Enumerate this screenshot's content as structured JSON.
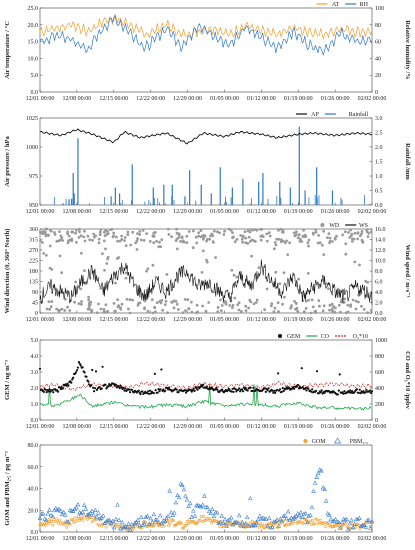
{
  "figure": {
    "x_ticks": [
      "12/01 00:00",
      "12/08 00:00",
      "12/15 00:00",
      "12/22 00:00",
      "12/29 00:00",
      "01/05 00:00",
      "01/12 00:00",
      "01/19 00:00",
      "01/26 00:00",
      "02/02 00:00"
    ],
    "x_tick_days": [
      0,
      7,
      14,
      21,
      28,
      35,
      42,
      49,
      56,
      63
    ]
  },
  "chart_data": [
    {
      "type": "line",
      "panel": "a",
      "ylabel_left": "Air temperature / °C",
      "ylabel_right": "Relative humidity /%",
      "ylim_left": [
        0,
        25
      ],
      "yticks_left": [
        "0.0",
        "5.0",
        "10.0",
        "15.0",
        "20.0",
        "25.0"
      ],
      "ylim_right": [
        0,
        100
      ],
      "yticks_right": [
        "0",
        "20",
        "40",
        "60",
        "80",
        "100"
      ],
      "legend": "top-right",
      "series": [
        {
          "name": "AT",
          "axis": "left",
          "color": "#f0a030",
          "x_days": [
            0,
            3,
            6,
            9,
            12,
            14,
            17,
            20,
            24,
            27,
            30,
            33,
            36,
            39,
            42,
            45,
            48,
            51,
            54,
            57,
            60,
            63
          ],
          "values": [
            18,
            19,
            20,
            18,
            21,
            22,
            20,
            17,
            20,
            17,
            18,
            19,
            17,
            20,
            18,
            17,
            19,
            18,
            17,
            19,
            18,
            18
          ]
        },
        {
          "name": "RH",
          "axis": "right",
          "color": "#2e78c8",
          "x_days": [
            0,
            3,
            6,
            9,
            12,
            14,
            17,
            20,
            24,
            27,
            30,
            33,
            36,
            39,
            42,
            45,
            48,
            51,
            54,
            57,
            60,
            63
          ],
          "values": [
            58,
            68,
            62,
            50,
            76,
            88,
            72,
            52,
            76,
            54,
            80,
            66,
            56,
            78,
            64,
            52,
            72,
            56,
            50,
            70,
            60,
            62
          ]
        }
      ]
    },
    {
      "type": "line",
      "panel": "b",
      "ylabel_left": "Air pressure / hPa",
      "ylabel_right": "Rainfall /mm",
      "ylim_left": [
        950,
        1025
      ],
      "yticks_left": [
        "950",
        "975",
        "1000",
        "1025"
      ],
      "ylim_right": [
        0,
        3
      ],
      "yticks_right": [
        "0.0",
        "0.5",
        "1.0",
        "1.5",
        "2.0",
        "2.5",
        "3.0"
      ],
      "legend": "top-right",
      "series": [
        {
          "name": "AP",
          "axis": "left",
          "color": "#111111",
          "x_days": [
            0,
            4,
            7,
            10,
            14,
            16,
            19,
            24,
            28,
            31,
            35,
            38,
            42,
            45,
            49,
            52,
            56,
            60,
            63
          ],
          "values": [
            1013,
            1010,
            1015,
            1011,
            1004,
            1013,
            1008,
            1012,
            1003,
            1012,
            1009,
            1013,
            1011,
            1008,
            1011,
            1012,
            1010,
            1012,
            1011
          ]
        },
        {
          "name": "Rainfall",
          "axis": "right",
          "color": "#2e78c8",
          "bar_days": [
            5.5,
            6.3,
            6.5,
            7.2,
            13.5,
            14.3,
            15.1,
            17.5,
            21.5,
            23.5,
            25.1,
            27.5,
            28.4,
            30.6,
            32.5,
            34.2,
            36.5,
            38.5,
            41.5,
            42.3,
            45.5,
            47.5,
            49.2,
            50.3,
            52.5,
            55.5
          ],
          "values": [
            0.2,
            1.1,
            0.4,
            2.3,
            0.3,
            0.6,
            0.4,
            1.4,
            0.6,
            0.7,
            0.7,
            0.3,
            1.2,
            0.7,
            0.4,
            1.3,
            0.6,
            0.9,
            0.8,
            1.1,
            0.8,
            0.6,
            2.7,
            0.5,
            1.3,
            0.5
          ]
        }
      ]
    },
    {
      "type": "scatter",
      "panel": "c",
      "ylabel_left": "Wind direction (0, 360° North)",
      "ylabel_right": "Wind speed / m·s⁻¹",
      "ylim_left": [
        0,
        360
      ],
      "yticks_left": [
        "0",
        "45",
        "90",
        "135",
        "180",
        "225",
        "270",
        "315",
        "360"
      ],
      "ylim_right": [
        0,
        16
      ],
      "yticks_right": [
        "0.0",
        "2.0",
        "4.0",
        "6.0",
        "8.0",
        "10.0",
        "12.0",
        "14.0",
        "16.0"
      ],
      "legend": "top-right",
      "series": [
        {
          "name": "WD",
          "axis": "left",
          "color": "#9a9a9a",
          "marker": "circle"
        },
        {
          "name": "WS",
          "axis": "right",
          "color": "#111111",
          "x_days": [
            0,
            2,
            4,
            6,
            8,
            10,
            12,
            14,
            16,
            18,
            20,
            22,
            24,
            26,
            28,
            30,
            32,
            34,
            36,
            38,
            40,
            42,
            44,
            46,
            48,
            50,
            52,
            54,
            56,
            58,
            60,
            62,
            63
          ],
          "values": [
            3,
            5,
            4,
            3,
            6,
            8,
            4,
            7,
            9,
            5,
            3,
            6,
            4,
            7,
            8,
            5,
            6,
            4,
            3,
            7,
            5,
            9,
            6,
            4,
            7,
            3,
            5,
            6,
            4,
            3,
            5,
            4,
            3
          ]
        }
      ]
    },
    {
      "type": "line",
      "panel": "d",
      "ylabel_left": "GEM / ng m⁻³",
      "ylabel_right": "CO and O₃*10 /ppbv",
      "ylim_left": [
        0,
        5
      ],
      "yticks_left": [
        "0.0",
        "1.0",
        "2.0",
        "3.0",
        "4.0",
        "5.0"
      ],
      "ylim_right": [
        0,
        1000
      ],
      "yticks_right": [
        "0",
        "200",
        "400",
        "600",
        "800",
        "1000"
      ],
      "legend": "top-right",
      "series": [
        {
          "name": "GEM",
          "axis": "left",
          "color": "#111111",
          "marker": "circle",
          "x_days": [
            0,
            3,
            6,
            7.5,
            10,
            14,
            17,
            20,
            24,
            28,
            31,
            35,
            38,
            42,
            45,
            49,
            52,
            56,
            60,
            63
          ],
          "values": [
            1.9,
            1.8,
            2.4,
            3.6,
            1.9,
            2.2,
            1.8,
            1.7,
            1.9,
            1.8,
            2.1,
            1.8,
            1.9,
            1.9,
            1.8,
            2.1,
            1.8,
            1.7,
            1.8,
            1.8
          ]
        },
        {
          "name": "CO",
          "axis": "right",
          "color": "#22a84a",
          "x_days": [
            0,
            3,
            6,
            7.5,
            10,
            14,
            17,
            20,
            24,
            28,
            31,
            35,
            38,
            42,
            45,
            49,
            52,
            56,
            60,
            63
          ],
          "values": [
            200,
            180,
            260,
            320,
            170,
            220,
            180,
            160,
            190,
            170,
            230,
            180,
            200,
            190,
            170,
            220,
            160,
            150,
            140,
            150
          ]
        },
        {
          "name": "O₃*10",
          "axis": "right",
          "color": "#cc2222",
          "x_days": [
            0,
            3,
            6,
            7.5,
            10,
            14,
            17,
            20,
            24,
            28,
            31,
            35,
            38,
            42,
            45,
            49,
            52,
            56,
            60,
            63
          ],
          "values": [
            420,
            440,
            380,
            400,
            450,
            430,
            410,
            460,
            430,
            400,
            450,
            420,
            440,
            410,
            460,
            420,
            430,
            450,
            420,
            430
          ]
        }
      ]
    },
    {
      "type": "scatter",
      "panel": "e",
      "ylabel_left": "GOM and PBM₂.₅ / pg m⁻³",
      "ylim_left": [
        0,
        80
      ],
      "yticks_left": [
        "0.0",
        "20.0",
        "40.0",
        "60.0",
        "80.0"
      ],
      "legend": "top-right",
      "series": [
        {
          "name": "GOM",
          "axis": "left",
          "color": "#f0a030",
          "marker": "circle",
          "x_days": [
            1,
            3,
            5,
            7,
            9,
            11,
            13,
            15,
            17,
            19,
            21,
            23,
            25,
            27,
            29,
            31,
            33,
            35,
            37,
            39,
            41,
            43,
            45,
            47,
            49,
            51,
            53,
            55,
            57,
            59,
            61,
            63
          ],
          "values": [
            8,
            10,
            6,
            12,
            14,
            9,
            7,
            5,
            4,
            6,
            8,
            7,
            9,
            6,
            10,
            12,
            8,
            7,
            9,
            6,
            8,
            5,
            7,
            9,
            11,
            8,
            10,
            6,
            7,
            5,
            6,
            7
          ]
        },
        {
          "name": "PBM₂.₅",
          "axis": "left",
          "color": "#3a7fd0",
          "marker": "triangle",
          "x_days": [
            1,
            3,
            5,
            7,
            9,
            11,
            13,
            15,
            17,
            19,
            21,
            23,
            25,
            27,
            29,
            31,
            33,
            35,
            37,
            39,
            41,
            43,
            45,
            47,
            49,
            51,
            53,
            55,
            57,
            59,
            61,
            63
          ],
          "values": [
            14,
            18,
            12,
            22,
            20,
            15,
            10,
            8,
            6,
            9,
            12,
            10,
            14,
            45,
            16,
            30,
            15,
            10,
            12,
            9,
            11,
            8,
            10,
            14,
            18,
            12,
            62,
            9,
            8,
            7,
            9,
            8
          ]
        }
      ]
    }
  ]
}
